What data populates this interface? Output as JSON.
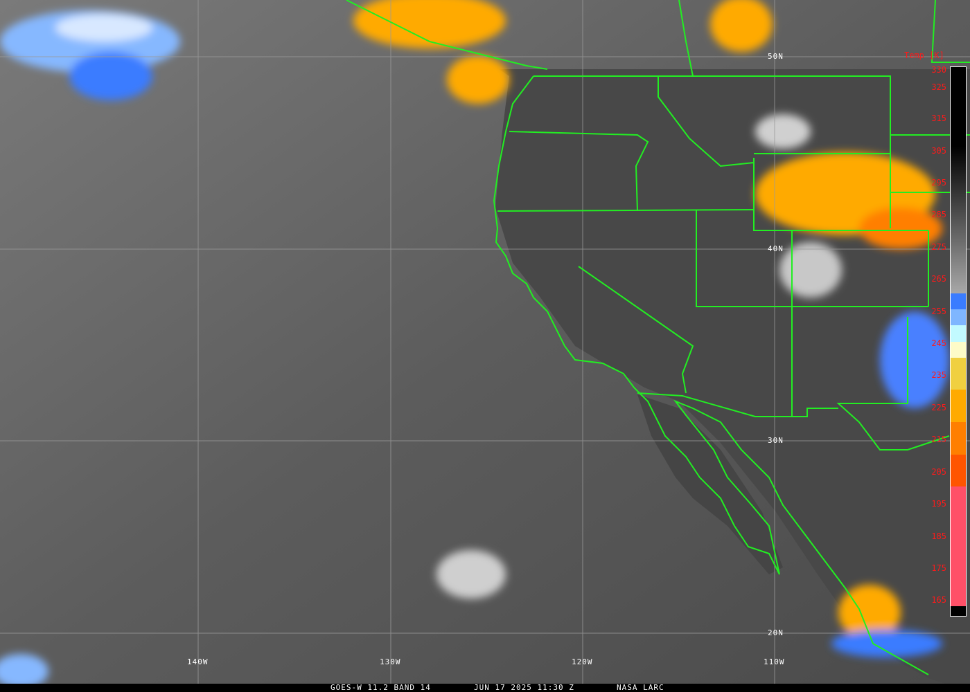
{
  "caption": {
    "product": "GOES-W 11.2 BAND 14",
    "datetime": "JUN 17 2025 11:30 Z",
    "source": "NASA LARC"
  },
  "grid": {
    "latitudes": [
      "50N",
      "40N",
      "30N",
      "20N"
    ],
    "longitudes": [
      "140W",
      "130W",
      "120W",
      "110W"
    ]
  },
  "colorbar": {
    "title": "Temp [K]",
    "ticks": [
      "330",
      "325",
      "315",
      "305",
      "295",
      "285",
      "275",
      "265",
      "255",
      "245",
      "235",
      "225",
      "215",
      "205",
      "195",
      "185",
      "175",
      "165"
    ],
    "segments": [
      {
        "from": 330,
        "to": 260,
        "color": "gradient #000000-#a8a8a8"
      },
      {
        "from": 260,
        "to": 255,
        "color": "#3a7cff"
      },
      {
        "from": 255,
        "to": 250,
        "color": "#7fb6ff"
      },
      {
        "from": 250,
        "to": 245,
        "color": "#c2faff"
      },
      {
        "from": 245,
        "to": 240,
        "color": "#fdfbc8"
      },
      {
        "from": 240,
        "to": 230,
        "color": "#f0d040"
      },
      {
        "from": 230,
        "to": 220,
        "color": "#ffaa00"
      },
      {
        "from": 220,
        "to": 210,
        "color": "#ff7f00"
      },
      {
        "from": 210,
        "to": 200,
        "color": "#ff5500"
      },
      {
        "from": 200,
        "to": 163,
        "color": "#ff5068"
      },
      {
        "from": 163,
        "to": 160,
        "color": "#000000"
      }
    ]
  },
  "colors": {
    "borders": "#22ee22",
    "labels": "#ff1a1a",
    "grid": "#9a9a9a"
  }
}
